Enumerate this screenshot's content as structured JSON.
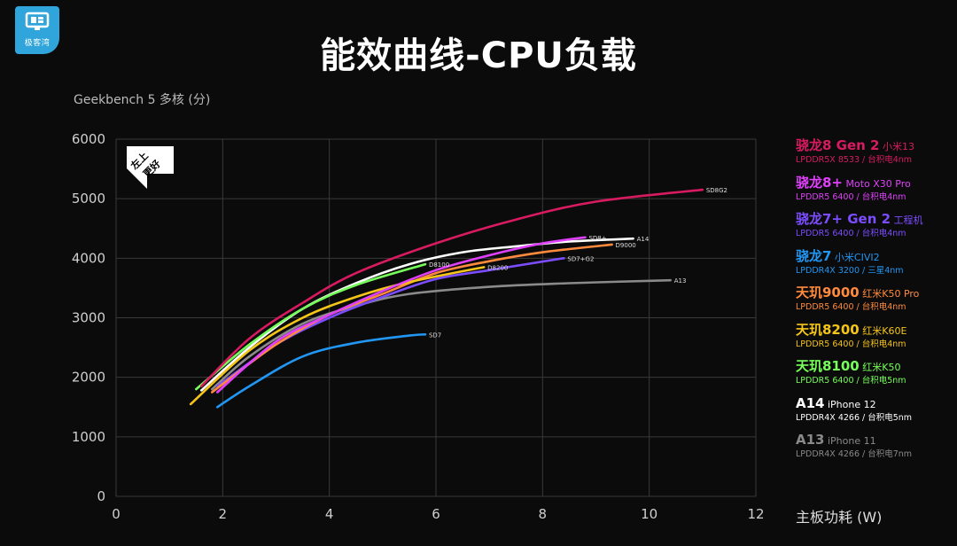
{
  "logo": {
    "brand": "极客湾"
  },
  "title": "能效曲线-CPU负载",
  "axes": {
    "ylabel": "Geekbench 5 多核 (分)",
    "xlabel": "主板功耗 (W)"
  },
  "badge": {
    "line1": "左上",
    "line2": "更好"
  },
  "chart_data": {
    "type": "line",
    "title": "能效曲线-CPU负载",
    "xlabel": "主板功耗 (W)",
    "ylabel": "Geekbench 5 多核 (分)",
    "xlim": [
      0,
      12
    ],
    "ylim": [
      0,
      6000
    ],
    "xticks": [
      0,
      2,
      4,
      6,
      8,
      10,
      12
    ],
    "yticks": [
      0,
      1000,
      2000,
      3000,
      4000,
      5000,
      6000
    ],
    "grid": true,
    "legend_position": "right",
    "series": [
      {
        "name": "骁龙8 Gen 2",
        "label": "SD8G2",
        "color": "#d81b60",
        "x": [
          1.6,
          2.5,
          3.5,
          4.5,
          6,
          7.5,
          9,
          11
        ],
        "y": [
          1850,
          2650,
          3250,
          3750,
          4250,
          4650,
          4950,
          5150
        ]
      },
      {
        "name": "骁龙8+",
        "label": "SD8+",
        "color": "#e040fb",
        "x": [
          1.9,
          3,
          4,
          5,
          6,
          7,
          8,
          8.8
        ],
        "y": [
          1750,
          2600,
          3050,
          3450,
          3800,
          4050,
          4250,
          4350
        ]
      },
      {
        "name": "骁龙7+ Gen 2",
        "label": "SD7+G2",
        "color": "#7c4dff",
        "x": [
          1.9,
          3,
          4,
          5,
          6,
          7,
          8.4
        ],
        "y": [
          1850,
          2550,
          3000,
          3350,
          3650,
          3800,
          4000
        ]
      },
      {
        "name": "骁龙7",
        "label": "SD7",
        "color": "#2196f3",
        "x": [
          1.9,
          2.5,
          3.5,
          4.5,
          5.5,
          5.8
        ],
        "y": [
          1500,
          1850,
          2350,
          2580,
          2700,
          2720
        ]
      },
      {
        "name": "天玑9000",
        "label": "D9000",
        "color": "#ff8a3d",
        "x": [
          1.8,
          3,
          4,
          5,
          6,
          7,
          8,
          9.3
        ],
        "y": [
          1750,
          2550,
          3050,
          3400,
          3750,
          3950,
          4100,
          4230
        ]
      },
      {
        "name": "天玑8200",
        "label": "D8200",
        "color": "#f5c518",
        "x": [
          1.4,
          2.5,
          3.5,
          4.5,
          5.5,
          6.9
        ],
        "y": [
          1550,
          2450,
          3000,
          3350,
          3600,
          3850
        ]
      },
      {
        "name": "天玑8100",
        "label": "D8100",
        "color": "#76ff5a",
        "x": [
          1.5,
          2.5,
          3.5,
          4.5,
          5.8
        ],
        "y": [
          1800,
          2550,
          3150,
          3550,
          3900
        ]
      },
      {
        "name": "A14",
        "label": "A14",
        "color": "#ffffff",
        "x": [
          1.6,
          2.5,
          3.5,
          4.5,
          5.5,
          6.5,
          7.5,
          8.5,
          9.7
        ],
        "y": [
          1780,
          2500,
          3150,
          3580,
          3900,
          4100,
          4200,
          4280,
          4330
        ]
      },
      {
        "name": "A13",
        "label": "A13",
        "color": "#8a8a8a",
        "x": [
          1.8,
          2.5,
          3.5,
          4.5,
          5.5,
          7,
          8.5,
          10.4
        ],
        "y": [
          1800,
          2350,
          2900,
          3200,
          3400,
          3520,
          3580,
          3630
        ]
      }
    ]
  },
  "legend": [
    {
      "chip": "骁龙8 Gen 2",
      "device": "小米13",
      "spec": "LPDDR5X 8533 / 台积电4nm",
      "color": "#d81b60"
    },
    {
      "chip": "骁龙8+",
      "device": "Moto X30 Pro",
      "spec": "LPDDR5 6400 / 台积电4nm",
      "color": "#e040fb"
    },
    {
      "chip": "骁龙7+ Gen 2",
      "device": "工程机",
      "spec": "LPDDR5 6400 / 台积电4nm",
      "color": "#7c4dff"
    },
    {
      "chip": "骁龙7",
      "device": "小米CIVI2",
      "spec": "LPDDR4X 3200 / 三星4nm",
      "color": "#2196f3"
    },
    {
      "chip": "天玑9000",
      "device": "红米K50 Pro",
      "spec": "LPDDR5 6400 / 台积电4nm",
      "color": "#ff8a3d"
    },
    {
      "chip": "天玑8200",
      "device": "红米K60E",
      "spec": "LPDDR5 6400 / 台积电4nm",
      "color": "#f5c518"
    },
    {
      "chip": "天玑8100",
      "device": "红米K50",
      "spec": "LPDDR5 6400 / 台积电5nm",
      "color": "#76ff5a"
    },
    {
      "chip": "A14",
      "device": "iPhone 12",
      "spec": "LPDDR4X 4266 / 台积电5nm",
      "color": "#ffffff"
    },
    {
      "chip": "A13",
      "device": "iPhone 11",
      "spec": "LPDDR4X 4266 / 台积电7nm",
      "color": "#8a8a8a"
    }
  ]
}
